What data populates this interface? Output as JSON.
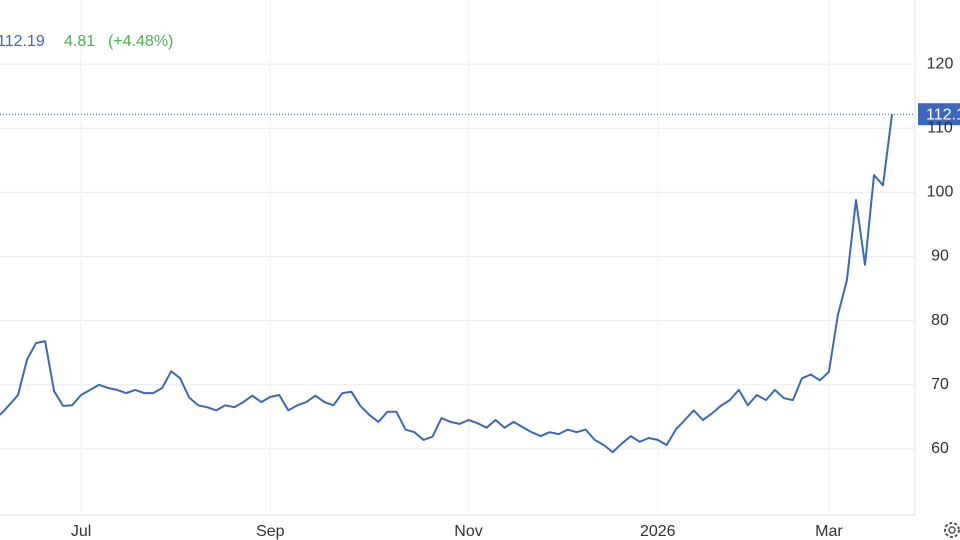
{
  "chart_data": {
    "type": "line",
    "price": 112.19,
    "change": 4.81,
    "change_percent": "(+4.48%)",
    "color": "#3d68b9",
    "grid": true,
    "categories": [
      null,
      null,
      null,
      null,
      null,
      null,
      null,
      null,
      null,
      "Jul",
      null,
      null,
      null,
      null,
      null,
      null,
      null,
      null,
      null,
      null,
      null,
      null,
      null,
      null,
      null,
      null,
      null,
      null,
      null,
      null,
      "Sep",
      null,
      null,
      null,
      null,
      null,
      null,
      null,
      null,
      null,
      null,
      null,
      null,
      null,
      null,
      null,
      null,
      null,
      null,
      null,
      null,
      null,
      "Nov",
      null,
      null,
      null,
      null,
      null,
      null,
      null,
      null,
      null,
      null,
      null,
      null,
      null,
      null,
      null,
      null,
      null,
      null,
      null,
      null,
      "2026",
      null,
      null,
      null,
      null,
      null,
      null,
      null,
      null,
      null,
      null,
      null,
      null,
      null,
      null,
      null,
      null,
      null,
      null,
      "Mar",
      null,
      null,
      null,
      null,
      null,
      null,
      null
    ],
    "values": [
      65.3,
      66.8,
      68.4,
      73.9,
      76.5,
      76.8,
      69,
      66.7,
      66.8,
      68.4,
      69.2,
      70,
      69.5,
      69.2,
      68.7,
      69.2,
      68.7,
      68.7,
      69.5,
      72.1,
      71,
      68,
      66.8,
      66.5,
      66,
      66.8,
      66.5,
      67.3,
      68.3,
      67.3,
      68.1,
      68.4,
      66,
      66.8,
      67.3,
      68.3,
      67.3,
      66.8,
      68.7,
      68.9,
      66.7,
      65.3,
      64.2,
      65.8,
      65.8,
      63,
      62.6,
      61.4,
      61.9,
      64.8,
      64.2,
      63.9,
      64.5,
      64,
      63.3,
      64.5,
      63.3,
      64.2,
      63.4,
      62.6,
      62,
      62.6,
      62.3,
      63,
      62.6,
      63,
      61.4,
      60.6,
      59.5,
      60.8,
      62,
      61.1,
      61.7,
      61.4,
      60.6,
      63,
      64.5,
      66,
      64.5,
      65.5,
      66.7,
      67.6,
      69.2,
      66.8,
      68.4,
      67.6,
      69.2,
      67.9,
      67.6,
      71,
      71.6,
      70.7,
      72,
      80.9,
      86.3,
      98.8,
      88.7,
      102.7,
      101.1,
      112.19
    ],
    "ylim": [
      50,
      130
    ],
    "yticks": [
      60,
      70,
      80,
      90,
      100,
      110,
      120
    ]
  }
}
